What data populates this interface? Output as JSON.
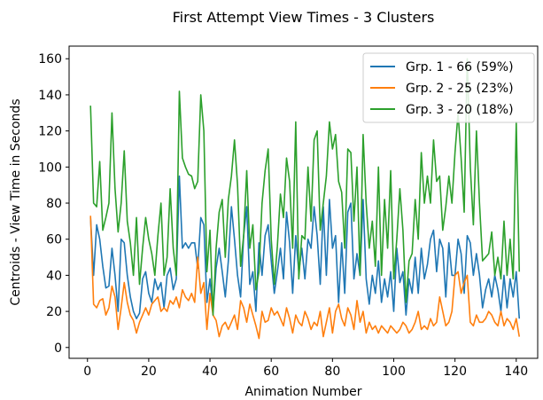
{
  "chart_data": {
    "type": "line",
    "title": "First Attempt View Times - 3 Clusters",
    "xlabel": "Animation Number",
    "ylabel": "Centroids - View Time in Seconds",
    "xlim": [
      -6,
      147
    ],
    "ylim": [
      -6,
      167
    ],
    "xticks": [
      0,
      20,
      40,
      60,
      80,
      100,
      120,
      140
    ],
    "yticks": [
      0,
      20,
      40,
      60,
      80,
      100,
      120,
      140,
      160
    ],
    "grid": false,
    "legend_position": "top-right",
    "x": [
      1,
      2,
      3,
      4,
      5,
      6,
      7,
      8,
      9,
      10,
      11,
      12,
      13,
      14,
      15,
      16,
      17,
      18,
      19,
      20,
      21,
      22,
      23,
      24,
      25,
      26,
      27,
      28,
      29,
      30,
      31,
      32,
      33,
      34,
      35,
      36,
      37,
      38,
      39,
      40,
      41,
      42,
      43,
      44,
      45,
      46,
      47,
      48,
      49,
      50,
      51,
      52,
      53,
      54,
      55,
      56,
      57,
      58,
      59,
      60,
      61,
      62,
      63,
      64,
      65,
      66,
      67,
      68,
      69,
      70,
      71,
      72,
      73,
      74,
      75,
      76,
      77,
      78,
      79,
      80,
      81,
      82,
      83,
      84,
      85,
      86,
      87,
      88,
      89,
      90,
      91,
      92,
      93,
      94,
      95,
      96,
      97,
      98,
      99,
      100,
      101,
      102,
      103,
      104,
      105,
      106,
      107,
      108,
      109,
      110,
      111,
      112,
      113,
      114,
      115,
      116,
      117,
      118,
      119,
      120,
      121,
      122,
      123,
      124,
      125,
      126,
      127,
      128,
      129,
      130,
      131,
      132,
      133,
      134,
      135,
      136,
      137,
      138,
      139,
      140,
      141
    ],
    "series": [
      {
        "name": "Grp. 1 - 66 (59%)",
        "color": "#1f77b4",
        "values": [
          72,
          40,
          68,
          60,
          45,
          33,
          34,
          55,
          40,
          20,
          60,
          58,
          40,
          28,
          20,
          16,
          19,
          38,
          42,
          30,
          25,
          38,
          32,
          36,
          22,
          40,
          44,
          32,
          38,
          95,
          55,
          58,
          55,
          58,
          58,
          44,
          72,
          68,
          25,
          38,
          20,
          44,
          55,
          42,
          28,
          48,
          78,
          60,
          40,
          28,
          62,
          78,
          35,
          42,
          20,
          58,
          40,
          62,
          68,
          48,
          30,
          42,
          55,
          38,
          75,
          58,
          30,
          62,
          42,
          55,
          38,
          60,
          55,
          78,
          62,
          35,
          78,
          40,
          82,
          55,
          62,
          25,
          58,
          30,
          75,
          80,
          38,
          52,
          40,
          82,
          38,
          24,
          40,
          30,
          48,
          25,
          38,
          28,
          42,
          20,
          55,
          36,
          42,
          18,
          38,
          30,
          50,
          30,
          55,
          38,
          46,
          60,
          65,
          42,
          60,
          55,
          28,
          58,
          40,
          40,
          60,
          52,
          30,
          62,
          58,
          40,
          52,
          40,
          22,
          32,
          38,
          28,
          40,
          32,
          20,
          40,
          22,
          38,
          28,
          42,
          16
        ]
      },
      {
        "name": "Grp. 2 - 25 (23%)",
        "color": "#ff7f0e",
        "values": [
          73,
          24,
          22,
          26,
          27,
          18,
          22,
          34,
          28,
          10,
          22,
          36,
          25,
          18,
          15,
          8,
          14,
          18,
          22,
          18,
          24,
          26,
          28,
          20,
          22,
          20,
          26,
          24,
          28,
          22,
          32,
          28,
          26,
          30,
          25,
          50,
          30,
          36,
          10,
          30,
          18,
          15,
          6,
          12,
          14,
          10,
          14,
          18,
          10,
          26,
          22,
          14,
          24,
          18,
          12,
          5,
          20,
          14,
          15,
          22,
          18,
          20,
          16,
          12,
          22,
          16,
          8,
          18,
          14,
          12,
          20,
          16,
          10,
          14,
          12,
          20,
          6,
          14,
          22,
          8,
          20,
          24,
          16,
          12,
          22,
          18,
          10,
          26,
          14,
          20,
          8,
          14,
          10,
          12,
          8,
          12,
          10,
          8,
          12,
          10,
          8,
          10,
          14,
          12,
          8,
          10,
          14,
          20,
          10,
          12,
          10,
          16,
          12,
          14,
          28,
          20,
          12,
          14,
          20,
          40,
          42,
          30,
          36,
          40,
          14,
          12,
          18,
          14,
          14,
          16,
          20,
          18,
          14,
          12,
          20,
          12,
          16,
          14,
          10,
          16,
          6
        ]
      },
      {
        "name": "Grp. 3 - 20 (18%)",
        "color": "#2ca02c",
        "values": [
          134,
          80,
          78,
          103,
          65,
          72,
          80,
          130,
          88,
          64,
          80,
          109,
          70,
          58,
          40,
          72,
          35,
          55,
          72,
          60,
          52,
          40,
          62,
          80,
          40,
          50,
          88,
          55,
          40,
          142,
          105,
          100,
          96,
          95,
          88,
          92,
          140,
          120,
          42,
          65,
          18,
          55,
          75,
          82,
          50,
          82,
          95,
          115,
          90,
          45,
          62,
          98,
          55,
          68,
          32,
          42,
          80,
          98,
          110,
          60,
          35,
          56,
          85,
          72,
          105,
          92,
          55,
          125,
          38,
          62,
          60,
          100,
          70,
          115,
          120,
          65,
          80,
          95,
          125,
          110,
          118,
          92,
          86,
          55,
          110,
          108,
          70,
          100,
          40,
          118,
          80,
          55,
          70,
          45,
          100,
          40,
          82,
          55,
          98,
          38,
          60,
          88,
          65,
          25,
          48,
          52,
          82,
          60,
          108,
          80,
          95,
          80,
          115,
          92,
          95,
          65,
          78,
          95,
          80,
          108,
          130,
          105,
          75,
          160,
          100,
          68,
          120,
          80,
          48,
          50,
          52,
          64,
          40,
          50,
          38,
          70,
          40,
          60,
          38,
          125,
          42
        ]
      }
    ]
  }
}
